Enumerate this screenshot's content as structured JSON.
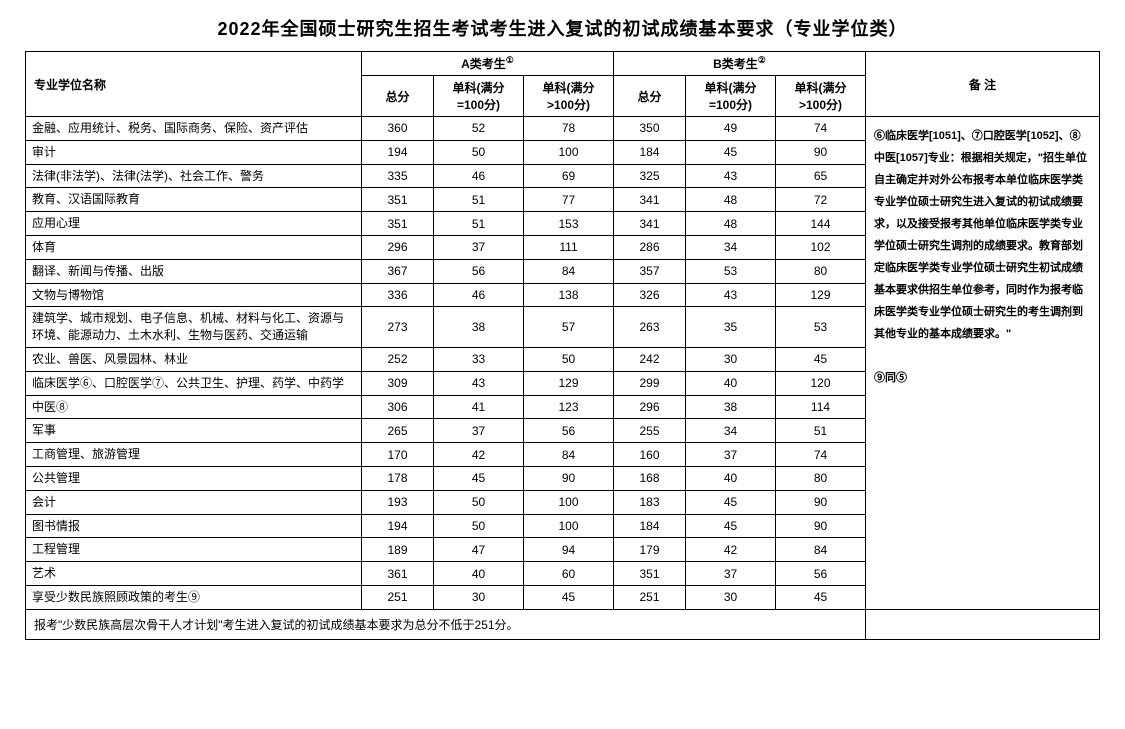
{
  "title": "2022年全国硕士研究生招生考试考生进入复试的初试成绩基本要求（专业学位类）",
  "headers": {
    "nameCol": "专业学位名称",
    "groupA": "A类考生",
    "groupASup": "①",
    "groupB": "B类考生",
    "groupBSup": "②",
    "total": "总分",
    "sub100": "单科(满分=100分)",
    "subOver100": "单科(满分>100分)",
    "notes": "备  注"
  },
  "rows": [
    {
      "name": "金融、应用统计、税务、国际商务、保险、资产评估",
      "a": [
        360,
        52,
        78
      ],
      "b": [
        350,
        49,
        74
      ]
    },
    {
      "name": "审计",
      "a": [
        194,
        50,
        100
      ],
      "b": [
        184,
        45,
        90
      ]
    },
    {
      "name": "法律(非法学)、法律(法学)、社会工作、警务",
      "a": [
        335,
        46,
        69
      ],
      "b": [
        325,
        43,
        65
      ]
    },
    {
      "name": "教育、汉语国际教育",
      "a": [
        351,
        51,
        77
      ],
      "b": [
        341,
        48,
        72
      ]
    },
    {
      "name": "应用心理",
      "a": [
        351,
        51,
        153
      ],
      "b": [
        341,
        48,
        144
      ]
    },
    {
      "name": "体育",
      "a": [
        296,
        37,
        111
      ],
      "b": [
        286,
        34,
        102
      ]
    },
    {
      "name": "翻译、新闻与传播、出版",
      "a": [
        367,
        56,
        84
      ],
      "b": [
        357,
        53,
        80
      ]
    },
    {
      "name": "文物与博物馆",
      "a": [
        336,
        46,
        138
      ],
      "b": [
        326,
        43,
        129
      ]
    },
    {
      "name": "建筑学、城市规划、电子信息、机械、材料与化工、资源与环境、能源动力、土木水利、生物与医药、交通运输",
      "a": [
        273,
        38,
        57
      ],
      "b": [
        263,
        35,
        53
      ]
    },
    {
      "name": "农业、兽医、风景园林、林业",
      "a": [
        252,
        33,
        50
      ],
      "b": [
        242,
        30,
        45
      ]
    },
    {
      "name": "临床医学⑥、口腔医学⑦、公共卫生、护理、药学、中药学",
      "a": [
        309,
        43,
        129
      ],
      "b": [
        299,
        40,
        120
      ]
    },
    {
      "name": "中医⑧",
      "a": [
        306,
        41,
        123
      ],
      "b": [
        296,
        38,
        114
      ]
    },
    {
      "name": "军事",
      "a": [
        265,
        37,
        56
      ],
      "b": [
        255,
        34,
        51
      ]
    },
    {
      "name": "工商管理、旅游管理",
      "a": [
        170,
        42,
        84
      ],
      "b": [
        160,
        37,
        74
      ]
    },
    {
      "name": "公共管理",
      "a": [
        178,
        45,
        90
      ],
      "b": [
        168,
        40,
        80
      ]
    },
    {
      "name": "会计",
      "a": [
        193,
        50,
        100
      ],
      "b": [
        183,
        45,
        90
      ]
    },
    {
      "name": "图书情报",
      "a": [
        194,
        50,
        100
      ],
      "b": [
        184,
        45,
        90
      ]
    },
    {
      "name": "工程管理",
      "a": [
        189,
        47,
        94
      ],
      "b": [
        179,
        42,
        84
      ]
    },
    {
      "name": "艺术",
      "a": [
        361,
        40,
        60
      ],
      "b": [
        351,
        37,
        56
      ]
    },
    {
      "name": "享受少数民族照顾政策的考生⑨",
      "a": [
        251,
        30,
        45
      ],
      "b": [
        251,
        30,
        45
      ]
    }
  ],
  "notesText": "⑥临床医学[1051]、⑦口腔医学[1052]、⑧中医[1057]专业：根据相关规定，\"招生单位自主确定并对外公布报考本单位临床医学类专业学位硕士研究生进入复试的初试成绩要求，以及接受报考其他单位临床医学类专业学位硕士研究生调剂的成绩要求。教育部划定临床医学类专业学位硕士研究生初试成绩基本要求供招生单位参考，同时作为报考临床医学类专业学位硕士研究生的考生调剂到其他专业的基本成绩要求。\"\n\n⑨同⑤",
  "footer": "报考\"少数民族高层次骨干人才计划\"考生进入复试的初试成绩基本要求为总分不低于251分。",
  "style": {
    "titleFontSize": 18,
    "bodyFontSize": 12,
    "notesFontSize": 11,
    "borderColor": "#000000",
    "background": "#ffffff"
  }
}
